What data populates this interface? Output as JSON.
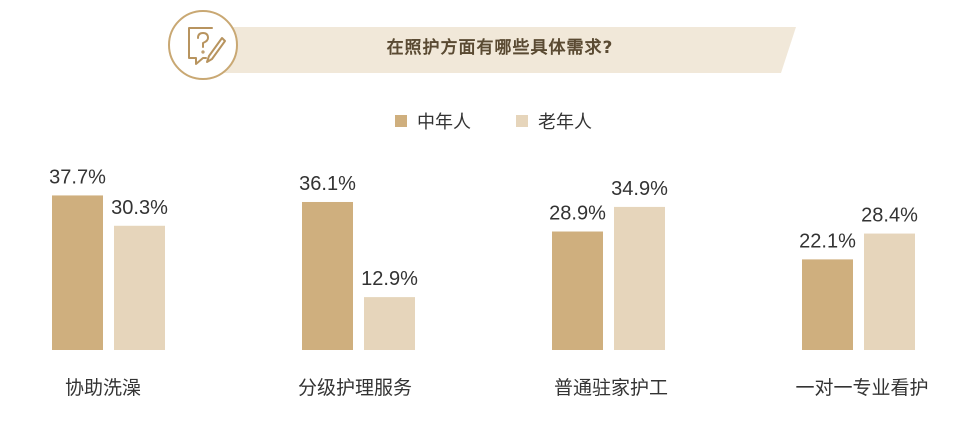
{
  "title": "在照护方面有哪些具体需求?",
  "colors": {
    "accent": "#c9a873",
    "banner": "#f1e8d9",
    "middle_aged": "#cfaf7e",
    "elderly": "#e6d5bb"
  },
  "icon": "question-edit-icon",
  "chart_data": {
    "type": "bar",
    "title": "在照护方面有哪些具体需求?",
    "categories": [
      "协助洗澡",
      "分级护理服务",
      "普通驻家护工",
      "一对一专业看护"
    ],
    "series": [
      {
        "name": "中年人",
        "values": [
          37.7,
          36.1,
          28.9,
          22.1
        ],
        "labels": [
          "37.7%",
          "36.1%",
          "28.9%",
          "22.1%"
        ]
      },
      {
        "name": "老年人",
        "values": [
          30.3,
          12.9,
          34.9,
          28.4
        ],
        "labels": [
          "30.3%",
          "12.9%",
          "34.9%",
          "28.4%"
        ]
      }
    ],
    "legend": [
      "中年人",
      "老年人"
    ],
    "legend_position": "top-center",
    "ylim": [
      0,
      40
    ],
    "grid": false,
    "unit": "%"
  }
}
